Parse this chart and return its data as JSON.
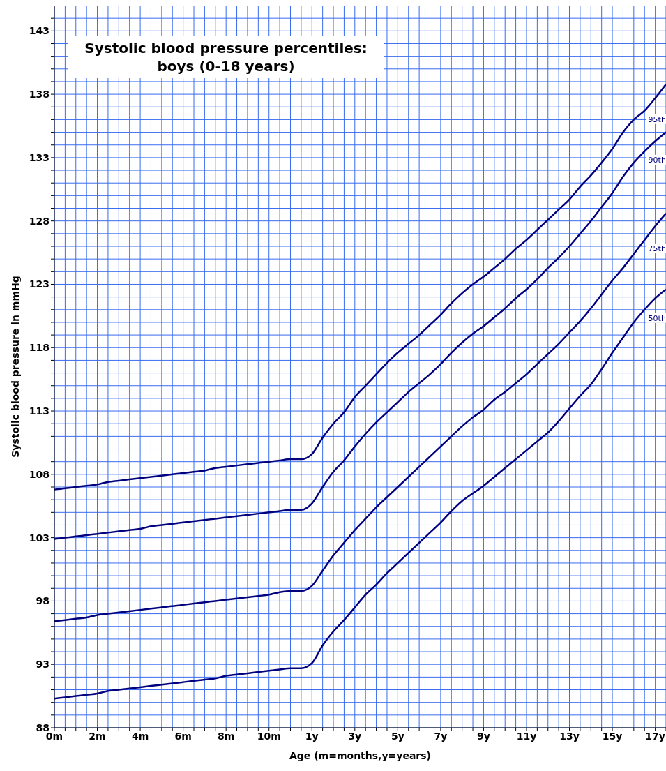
{
  "chart_data": {
    "type": "line",
    "title": "Systolic blood pressure percentiles: boys (0-18 years)",
    "xlabel": "Age (m=months,y=years)",
    "ylabel": "Systolic blood pressure in mmHg",
    "categories": [
      "0m",
      null,
      null,
      null,
      "2m",
      null,
      null,
      null,
      "4m",
      null,
      null,
      null,
      "6m",
      null,
      null,
      null,
      "8m",
      null,
      null,
      null,
      "10m",
      null,
      null,
      null,
      "1y",
      null,
      null,
      null,
      "3y",
      null,
      null,
      null,
      "5y",
      null,
      null,
      null,
      "7y",
      null,
      null,
      null,
      "9y",
      null,
      null,
      null,
      "11y",
      null,
      null,
      null,
      "13y",
      null,
      null,
      null,
      "15y",
      null,
      null,
      null,
      "17y",
      null
    ],
    "series": [
      {
        "name": "95th",
        "color": "#00007f",
        "values": [
          106.8,
          106.9,
          107.0,
          107.1,
          107.2,
          107.4,
          107.5,
          107.6,
          107.7,
          107.8,
          107.9,
          108.0,
          108.1,
          108.2,
          108.3,
          108.5,
          108.6,
          108.7,
          108.8,
          108.9,
          109.0,
          109.1,
          109.2,
          109.2,
          109.6,
          110.9,
          112.0,
          112.9,
          114.1,
          115.0,
          115.9,
          116.8,
          117.6,
          118.3,
          119.0,
          119.8,
          120.6,
          121.5,
          122.3,
          123.0,
          123.6,
          124.3,
          125.0,
          125.8,
          126.5,
          127.3,
          128.1,
          128.9,
          129.7,
          130.7,
          131.6,
          132.6,
          133.7,
          135.0,
          136.0,
          136.7,
          137.7,
          138.8
        ]
      },
      {
        "name": "90th",
        "color": "#00007f",
        "values": [
          102.9,
          103.0,
          103.1,
          103.2,
          103.3,
          103.4,
          103.5,
          103.6,
          103.7,
          103.9,
          104.0,
          104.1,
          104.2,
          104.3,
          104.4,
          104.5,
          104.6,
          104.7,
          104.8,
          104.9,
          105.0,
          105.1,
          105.2,
          105.2,
          105.7,
          107.0,
          108.2,
          109.1,
          110.2,
          111.2,
          112.1,
          112.9,
          113.7,
          114.5,
          115.2,
          115.9,
          116.7,
          117.6,
          118.4,
          119.1,
          119.7,
          120.4,
          121.1,
          121.9,
          122.6,
          123.4,
          124.3,
          125.1,
          126.0,
          127.0,
          128.0,
          129.1,
          130.2,
          131.5,
          132.6,
          133.5,
          134.3,
          135.0
        ]
      },
      {
        "name": "75th",
        "color": "#00007f",
        "values": [
          96.4,
          96.5,
          96.6,
          96.7,
          96.9,
          97.0,
          97.1,
          97.2,
          97.3,
          97.4,
          97.5,
          97.6,
          97.7,
          97.8,
          97.9,
          98.0,
          98.1,
          98.2,
          98.3,
          98.4,
          98.5,
          98.7,
          98.8,
          98.8,
          99.2,
          100.4,
          101.6,
          102.6,
          103.6,
          104.5,
          105.4,
          106.2,
          107.0,
          107.8,
          108.6,
          109.4,
          110.2,
          111.0,
          111.8,
          112.5,
          113.1,
          113.9,
          114.5,
          115.2,
          115.9,
          116.7,
          117.5,
          118.3,
          119.2,
          120.1,
          121.1,
          122.2,
          123.3,
          124.3,
          125.4,
          126.5,
          127.6,
          128.6
        ]
      },
      {
        "name": "50th",
        "color": "#00007f",
        "values": [
          90.3,
          90.4,
          90.5,
          90.6,
          90.7,
          90.9,
          91.0,
          91.1,
          91.2,
          91.3,
          91.4,
          91.5,
          91.6,
          91.7,
          91.8,
          91.9,
          92.1,
          92.2,
          92.3,
          92.4,
          92.5,
          92.6,
          92.7,
          92.7,
          93.1,
          94.5,
          95.6,
          96.5,
          97.5,
          98.5,
          99.3,
          100.2,
          101.0,
          101.8,
          102.6,
          103.4,
          104.2,
          105.1,
          105.9,
          106.5,
          107.1,
          107.8,
          108.5,
          109.2,
          109.9,
          110.6,
          111.3,
          112.2,
          113.2,
          114.2,
          115.1,
          116.3,
          117.6,
          118.8,
          120.0,
          121.0,
          121.9,
          122.6
        ]
      }
    ],
    "ylim": [
      88,
      145
    ],
    "yticks": [
      88,
      {
        "value": 89,
        "label": null
      },
      {
        "value": 90,
        "label": null
      },
      {
        "value": 91,
        "label": null
      },
      {
        "value": 92,
        "label": null
      },
      93,
      {
        "value": 94,
        "label": null
      },
      {
        "value": 95,
        "label": null
      },
      {
        "value": 96,
        "label": null
      },
      {
        "value": 97,
        "label": null
      },
      98,
      {
        "value": 99,
        "label": null
      },
      {
        "value": 100,
        "label": null
      },
      {
        "value": 101,
        "label": null
      },
      {
        "value": 102,
        "label": null
      },
      103,
      {
        "value": 104,
        "label": null
      },
      {
        "value": 105,
        "label": null
      },
      {
        "value": 106,
        "label": null
      },
      {
        "value": 107,
        "label": null
      },
      108,
      {
        "value": 109,
        "label": null
      },
      {
        "value": 110,
        "label": null
      },
      {
        "value": 111,
        "label": null
      },
      {
        "value": 112,
        "label": null
      },
      113,
      {
        "value": 114,
        "label": null
      },
      {
        "value": 115,
        "label": null
      },
      {
        "value": 116,
        "label": null
      },
      {
        "value": 117,
        "label": null
      },
      118,
      {
        "value": 119,
        "label": null
      },
      {
        "value": 120,
        "label": null
      },
      {
        "value": 121,
        "label": null
      },
      {
        "value": 122,
        "label": null
      },
      123,
      {
        "value": 124,
        "label": null
      },
      {
        "value": 125,
        "label": null
      },
      {
        "value": 126,
        "label": null
      },
      {
        "value": 127,
        "label": null
      },
      128,
      {
        "value": 129,
        "label": null
      },
      {
        "value": 130,
        "label": null
      },
      {
        "value": 131,
        "label": null
      },
      {
        "value": 132,
        "label": null
      },
      133,
      {
        "value": 134,
        "label": null
      },
      {
        "value": 135,
        "label": null
      },
      {
        "value": 136,
        "label": null
      },
      {
        "value": 137,
        "label": null
      },
      138,
      {
        "value": 139,
        "label": null
      },
      {
        "value": 140,
        "label": null
      },
      {
        "value": 141,
        "label": null
      },
      {
        "value": 142,
        "label": null
      },
      143,
      {
        "value": 144,
        "label": null
      },
      {
        "value": 145,
        "label": null
      }
    ],
    "grid": true,
    "legend": false,
    "marker": "none",
    "line_style": "solid"
  }
}
